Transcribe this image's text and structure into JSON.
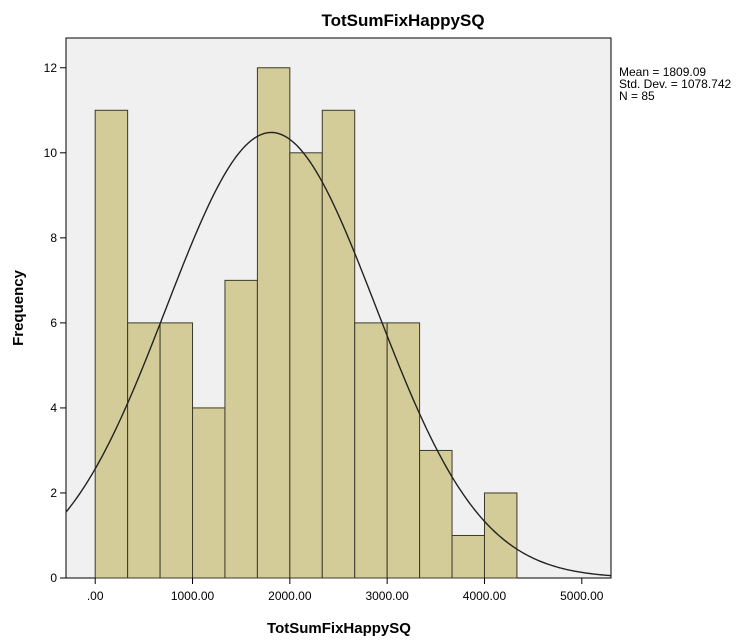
{
  "chart_data": {
    "type": "bar",
    "title": "TotSumFixHappySQ",
    "xlabel": "TotSumFixHappySQ",
    "ylabel": "Frequency",
    "bin_width": 333.33,
    "bins": [
      {
        "start": 0,
        "end": 333.33,
        "count": 11
      },
      {
        "start": 333.33,
        "end": 666.67,
        "count": 6
      },
      {
        "start": 666.67,
        "end": 1000,
        "count": 6
      },
      {
        "start": 1000,
        "end": 1333.33,
        "count": 4
      },
      {
        "start": 1333.33,
        "end": 1666.67,
        "count": 7
      },
      {
        "start": 1666.67,
        "end": 2000,
        "count": 12
      },
      {
        "start": 2000,
        "end": 2333.33,
        "count": 10
      },
      {
        "start": 2333.33,
        "end": 2666.67,
        "count": 11
      },
      {
        "start": 2666.67,
        "end": 3000,
        "count": 6
      },
      {
        "start": 3000,
        "end": 3333.33,
        "count": 6
      },
      {
        "start": 3333.33,
        "end": 3666.67,
        "count": 3
      },
      {
        "start": 3666.67,
        "end": 4000,
        "count": 1
      },
      {
        "start": 4000,
        "end": 4333.33,
        "count": 2
      }
    ],
    "xlim": [
      -300,
      5300
    ],
    "ylim": [
      0,
      12.7
    ],
    "x_ticks": [
      {
        "value": 0,
        "label": ".00"
      },
      {
        "value": 1000,
        "label": "1000.00"
      },
      {
        "value": 2000,
        "label": "2000.00"
      },
      {
        "value": 3000,
        "label": "3000.00"
      },
      {
        "value": 4000,
        "label": "4000.00"
      },
      {
        "value": 5000,
        "label": "5000.00"
      }
    ],
    "y_ticks": [
      0,
      2,
      4,
      6,
      8,
      10,
      12
    ],
    "normal_curve": {
      "mean": 1809.09,
      "std_dev": 1078.742,
      "n": 85
    },
    "stats_text": [
      "Mean = 1809.09",
      "Std. Dev. = 1078.742",
      "N = 85"
    ],
    "colors": {
      "bar_fill": "#d4cc98",
      "bar_stroke": "#3a3a2a",
      "plot_background": "#f0f0f0",
      "curve": "#222222",
      "axis": "#000000"
    },
    "grid": false
  }
}
